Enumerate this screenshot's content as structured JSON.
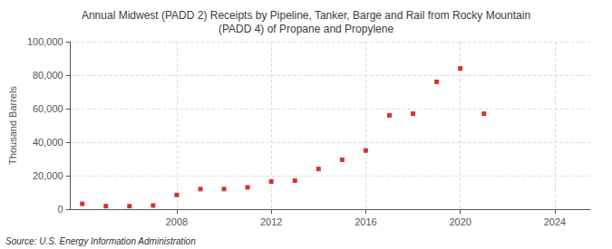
{
  "chart_data": {
    "type": "scatter",
    "title": "Annual Midwest (PADD 2) Receipts by Pipeline, Tanker, Barge and Rail from Rocky Mountain\n(PADD 4) of Propane and Propylene",
    "ylabel": "Thousand Barrels",
    "annotation": "Source: U.S. Energy Information Administration",
    "x": [
      2004,
      2005,
      2006,
      2007,
      2008,
      2009,
      2010,
      2011,
      2012,
      2013,
      2014,
      2015,
      2016,
      2017,
      2018,
      2019,
      2020,
      2021
    ],
    "values": [
      3200,
      1800,
      1800,
      2200,
      8500,
      12000,
      12000,
      13000,
      16500,
      17000,
      24000,
      29500,
      35000,
      56000,
      57000,
      76000,
      84000,
      57000
    ],
    "color": "#cc0000",
    "marker": "square",
    "xlim": [
      2003.5,
      2025.5
    ],
    "ylim": [
      0,
      100000
    ],
    "xticks": [
      2008,
      2012,
      2016,
      2020,
      2024
    ],
    "yticks": [
      0,
      {
        "value": 20000,
        "label": "20,000"
      },
      {
        "value": 40000,
        "label": "40,000"
      },
      {
        "value": 60000,
        "label": "60,000"
      },
      {
        "value": 80000,
        "label": "80,000"
      },
      {
        "value": 100000,
        "label": "100,000"
      }
    ],
    "grid": true
  }
}
